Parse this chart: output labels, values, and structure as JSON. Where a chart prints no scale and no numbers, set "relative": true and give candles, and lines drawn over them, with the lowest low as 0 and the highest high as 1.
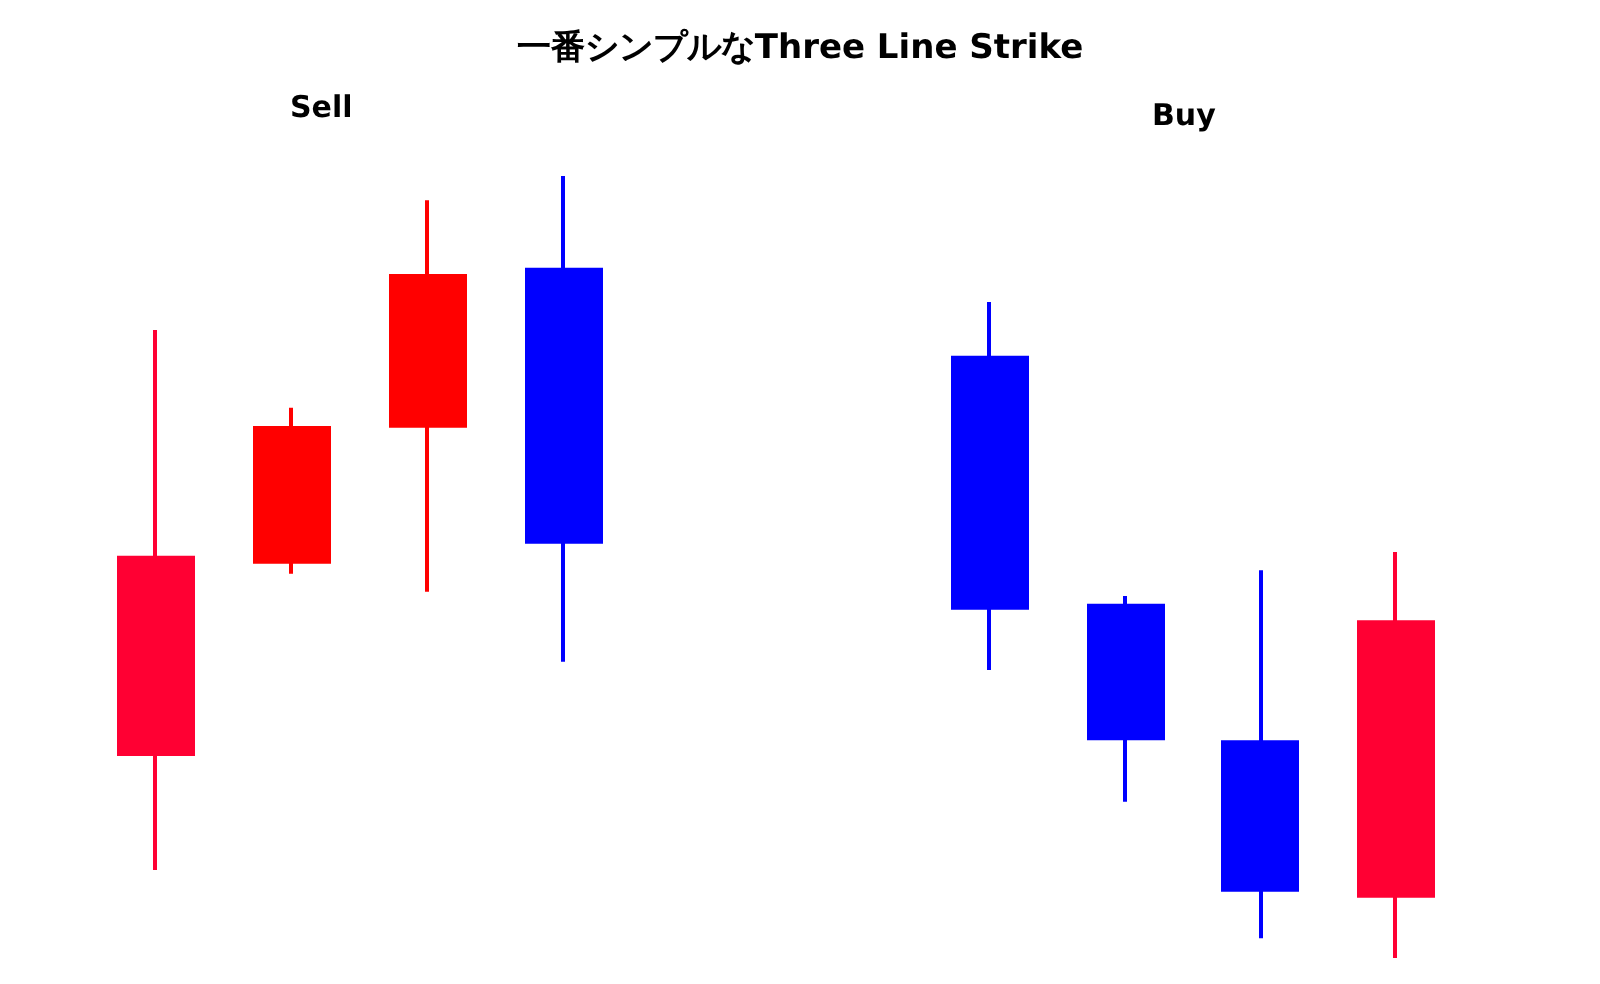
{
  "chart_data": [
    {
      "type": "candlestick",
      "title": "一番シンプルなThree Line Strike",
      "relative": true,
      "categories": [
        null,
        null,
        null,
        null
      ],
      "ohlc": [
        [
          0.167,
          0.778,
          0,
          0.45
        ],
        [
          0.444,
          0.666,
          0.427,
          0.637
        ],
        [
          0.64,
          0.965,
          0.401,
          0.856
        ],
        [
          0.865,
          1,
          0.3,
          0.473
        ]
      ],
      "colors": [
        "#ff0033",
        "#ff0000",
        "#ff0000",
        "#0000ff"
      ],
      "annotations": [
        "Sell"
      ]
    },
    {
      "type": "candlestick",
      "relative": true,
      "categories": [
        null,
        null,
        null,
        null
      ],
      "ohlc": [
        [
          0.915,
          1,
          0.439,
          0.534
        ],
        [
          0.537,
          0.552,
          0.238,
          0.335
        ],
        [
          0.329,
          0.591,
          0.03,
          0.104
        ],
        [
          0.095,
          0.619,
          0,
          0.512
        ]
      ],
      "colors": [
        "#0000ff",
        "#0000ff",
        "#0000ff",
        "#ff0033"
      ],
      "annotations": [
        "Buy"
      ]
    }
  ]
}
